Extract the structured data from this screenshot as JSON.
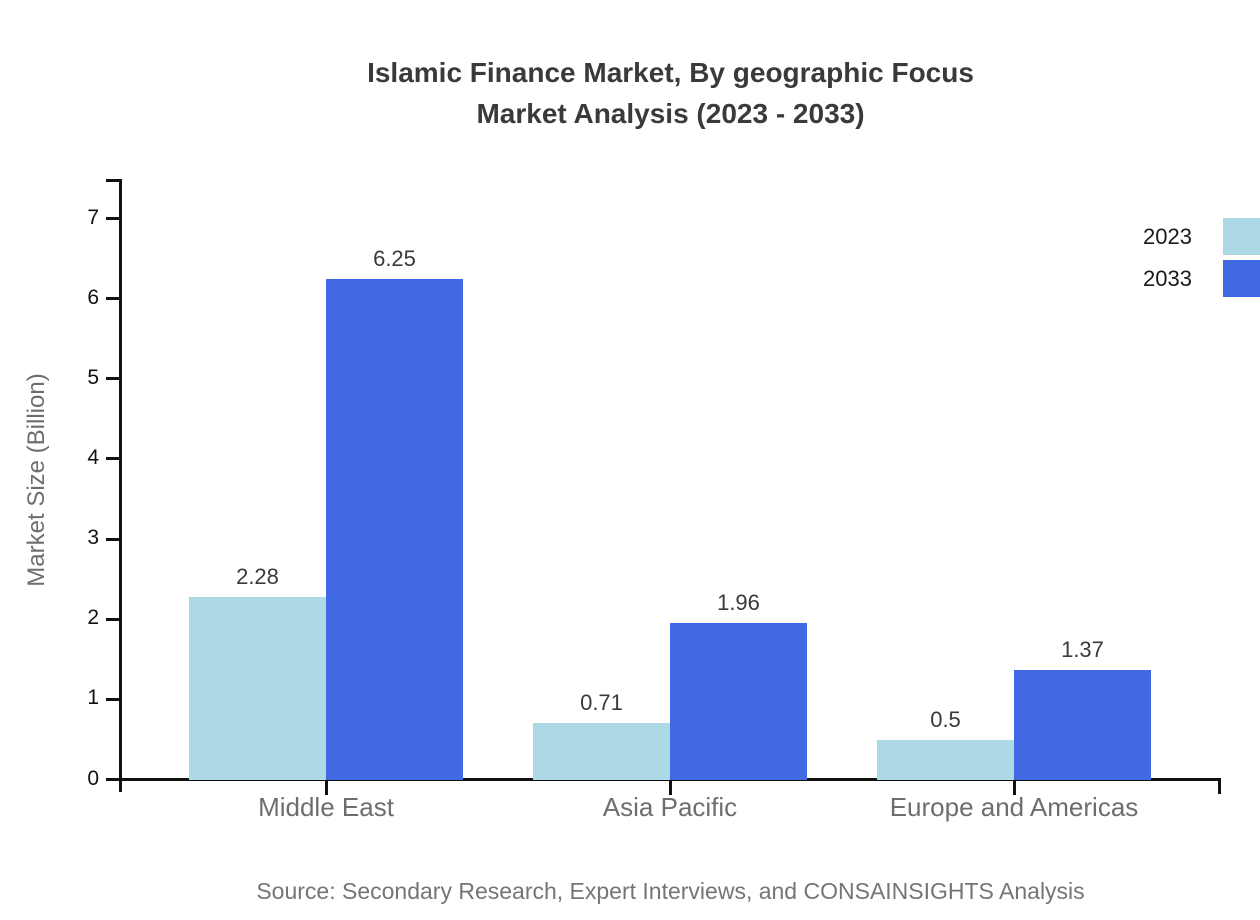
{
  "title": {
    "line1": "Islamic Finance Market, By geographic Focus",
    "line2": "Market Analysis (2023 - 2033)"
  },
  "source": "Source: Secondary Research, Expert Interviews, and CONSAINSIGHTS Analysis",
  "colors": {
    "series_2023": "#ADD8E6",
    "series_2033": "#4169E1",
    "axis": "#111111",
    "title_text": "#3a3a3a",
    "muted_text": "#6e6e6e",
    "source_text": "#757575"
  },
  "chart_data": {
    "type": "bar",
    "title": "Islamic Finance Market, By geographic Focus Market Analysis (2023 - 2033)",
    "categories": [
      "Middle East",
      "Asia Pacific",
      "Europe and Americas"
    ],
    "series": [
      {
        "name": "2023",
        "color": "#ADD8E6",
        "values": [
          2.28,
          0.71,
          0.5
        ]
      },
      {
        "name": "2033",
        "color": "#4169E1",
        "values": [
          6.25,
          1.96,
          1.37
        ]
      }
    ],
    "xlabel": "",
    "ylabel": "Market Size (Billion)",
    "yticks": [
      0,
      1,
      2,
      3,
      4,
      5,
      6,
      7
    ],
    "ylim": [
      0,
      7.5
    ],
    "grid": false,
    "legend_position": "top-right",
    "value_labels_shown": true
  }
}
